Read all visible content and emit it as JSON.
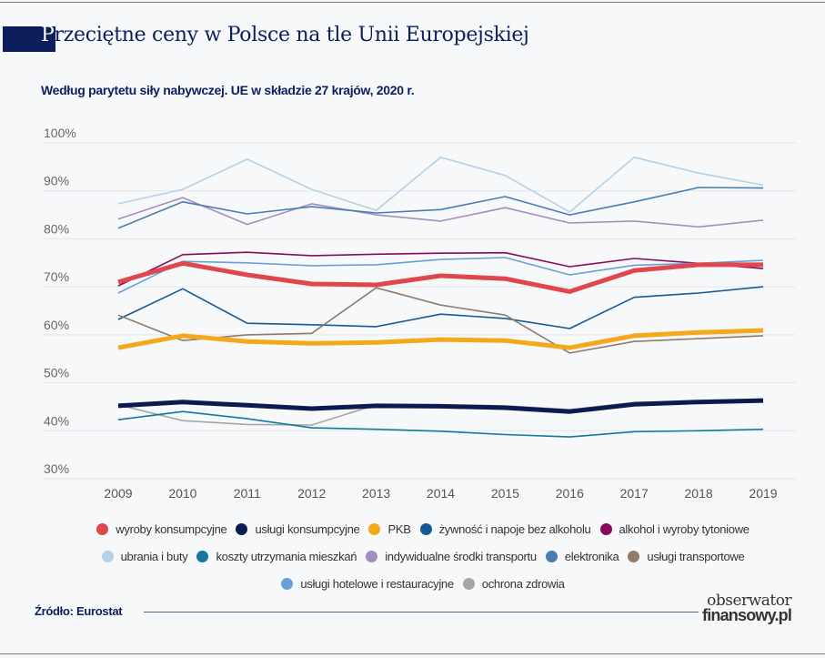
{
  "header": {
    "title_first_letter": "P",
    "title_rest": "rzeciętne ceny w Polsce na tle Unii Europejskiej",
    "subtitle": "Według parytetu siły nabywczej. UE w składzie 27 krajów, 2020 r."
  },
  "footer": {
    "source": "Źródło: Eurostat",
    "logo_line1": "obserwator",
    "logo_line2": "finansowy.pl"
  },
  "chart_data": {
    "type": "line",
    "title": "Przeciętne ceny w Polsce na tle Unii Europejskiej",
    "subtitle": "Według parytetu siły nabywczej. UE w składzie 27 krajów, 2020 r.",
    "xlabel": "",
    "ylabel": "",
    "x": [
      "2009",
      "2010",
      "2011",
      "2012",
      "2013",
      "2014",
      "2015",
      "2016",
      "2017",
      "2018",
      "2019"
    ],
    "ylim": [
      30,
      100
    ],
    "yticks": [
      30,
      40,
      50,
      60,
      70,
      80,
      90,
      100
    ],
    "ytick_labels": [
      "30%",
      "40%",
      "50%",
      "60%",
      "70%",
      "80%",
      "90%",
      "100%"
    ],
    "grid": true,
    "legend_position": "bottom",
    "series": [
      {
        "name": "ubrania i buty",
        "color": "#b5d0e8",
        "weight": "thin",
        "values": [
          87.3,
          90.3,
          96.6,
          90.3,
          85.9,
          97.0,
          93.2,
          85.6,
          97.0,
          93.7,
          91.2
        ]
      },
      {
        "name": "indywidualne środki transportu",
        "color": "#a48ebf",
        "weight": "thin",
        "values": [
          84.1,
          88.6,
          83.0,
          87.3,
          85.0,
          83.7,
          86.5,
          83.3,
          83.7,
          82.5,
          83.9
        ]
      },
      {
        "name": "elektronika",
        "color": "#4a7db0",
        "weight": "thin",
        "values": [
          82.2,
          87.7,
          85.2,
          86.7,
          85.4,
          86.1,
          88.8,
          85.0,
          87.7,
          90.7,
          90.6
        ]
      },
      {
        "name": "alkohol i wyroby tytoniowe",
        "color": "#8a0a5a",
        "weight": "thin",
        "values": [
          70.2,
          76.7,
          77.2,
          76.5,
          76.8,
          77.0,
          77.1,
          74.2,
          75.9,
          74.9,
          73.8
        ]
      },
      {
        "name": "usługi hotelowe i restauracyjne",
        "color": "#6aa0d6",
        "weight": "thin",
        "values": [
          68.7,
          75.3,
          75.0,
          74.4,
          74.6,
          75.7,
          76.1,
          72.5,
          74.5,
          74.9,
          75.5
        ]
      },
      {
        "name": "wyroby konsumpcyjne",
        "color": "#e0474c",
        "weight": "thick",
        "values": [
          71.0,
          74.9,
          72.5,
          70.6,
          70.4,
          72.3,
          71.7,
          69.0,
          73.4,
          74.6,
          74.6
        ]
      },
      {
        "name": "żywność i napoje bez alkoholu",
        "color": "#155a96",
        "weight": "thin",
        "values": [
          63.2,
          69.6,
          62.4,
          62.1,
          61.7,
          64.3,
          63.4,
          61.3,
          67.8,
          68.7,
          70.0
        ]
      },
      {
        "name": "usługi transportowe",
        "color": "#8f7c6a",
        "weight": "thin",
        "values": [
          64.1,
          58.8,
          60.0,
          60.3,
          69.8,
          66.2,
          64.1,
          56.2,
          58.6,
          59.2,
          59.8
        ]
      },
      {
        "name": "PKB",
        "color": "#f5a81c",
        "weight": "thick",
        "values": [
          57.3,
          59.8,
          58.6,
          58.2,
          58.4,
          59.0,
          58.8,
          57.3,
          59.8,
          60.5,
          60.9
        ]
      },
      {
        "name": "ochrona zdrowia",
        "color": "#a6a6a6",
        "weight": "thin",
        "values": [
          45.4,
          42.1,
          41.3,
          41.2,
          45.4,
          45.4,
          45.2,
          44.4,
          45.9,
          46.1,
          46.6
        ]
      },
      {
        "name": "usługi konsumpcyjne",
        "color": "#0c1a4f",
        "weight": "thick",
        "values": [
          45.2,
          46.0,
          45.3,
          44.6,
          45.2,
          45.1,
          44.8,
          44.0,
          45.5,
          46.0,
          46.3
        ]
      },
      {
        "name": "koszty utrzymania mieszkań",
        "color": "#1577a0",
        "weight": "thin",
        "values": [
          42.3,
          44.0,
          42.5,
          40.6,
          40.3,
          39.9,
          39.2,
          38.7,
          39.8,
          40.0,
          40.3
        ]
      }
    ],
    "legend": [
      [
        {
          "name": "wyroby konsumpcyjne",
          "color": "#e0474c"
        },
        {
          "name": "usługi konsumpcyjne",
          "color": "#0c1a4f"
        },
        {
          "name": "PKB",
          "color": "#f5a81c"
        },
        {
          "name": "żywność i napoje bez alkoholu",
          "color": "#155a96"
        },
        {
          "name": "alkohol i wyroby tytoniowe",
          "color": "#8a0a5a"
        }
      ],
      [
        {
          "name": "ubrania i buty",
          "color": "#b5d0e8"
        },
        {
          "name": "koszty utrzymania mieszkań",
          "color": "#1577a0"
        },
        {
          "name": "indywidualne środki transportu",
          "color": "#a48ebf"
        },
        {
          "name": "elektronika",
          "color": "#4a7db0"
        },
        {
          "name": "usługi transportowe",
          "color": "#8f7c6a"
        }
      ],
      [
        {
          "name": "usługi hotelowe i restauracyjne",
          "color": "#6aa0d6"
        },
        {
          "name": "ochrona zdrowia",
          "color": "#a6a6a6"
        }
      ]
    ]
  }
}
